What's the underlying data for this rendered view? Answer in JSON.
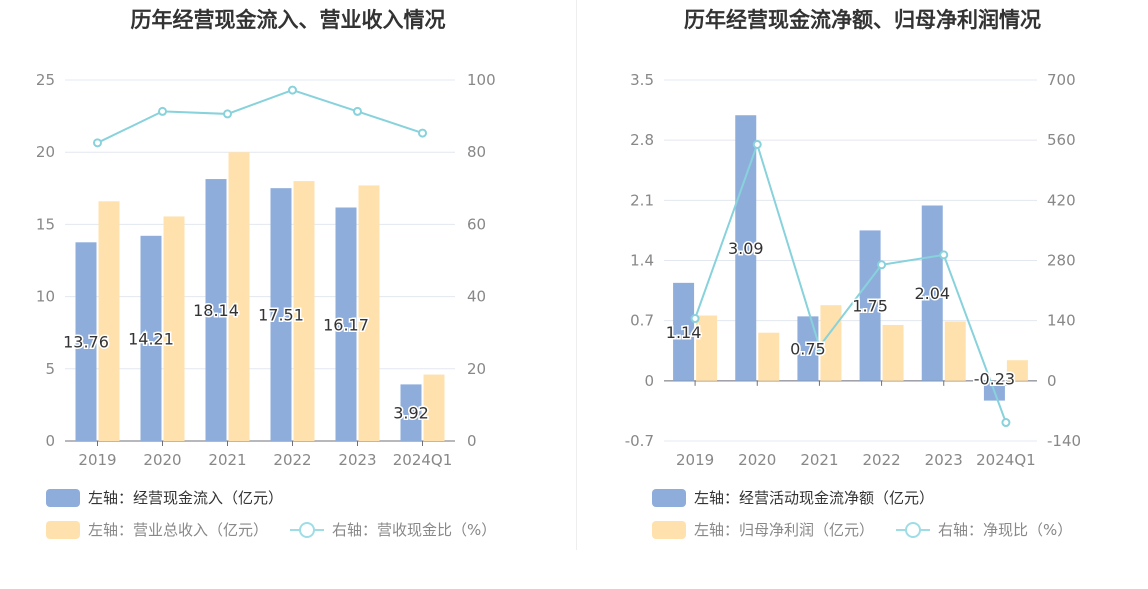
{
  "charts": [
    {
      "title": "历年经营现金流入、营业收入情况",
      "legend": [
        {
          "label": "左轴：经营现金流入（亿元）",
          "color": "#8eaddb",
          "kind": "bar",
          "text_color": "#333333"
        },
        {
          "label": "左轴：营业总收入（亿元）",
          "color": "#ffe1ad",
          "kind": "bar",
          "text_color": "#888888"
        },
        {
          "label": "右轴：营收现金比（%）",
          "color": "#9fdde6",
          "kind": "line",
          "text_color": "#888888"
        }
      ]
    },
    {
      "title": "历年经营现金流净额、归母净利润情况",
      "legend": [
        {
          "label": "左轴：经营活动现金流净额（亿元）",
          "color": "#8eaddb",
          "kind": "bar",
          "text_color": "#333333"
        },
        {
          "label": "左轴：归母净利润（亿元）",
          "color": "#ffe1ad",
          "kind": "bar",
          "text_color": "#888888"
        },
        {
          "label": "右轴：净现比（%）",
          "color": "#9fdde6",
          "kind": "line",
          "text_color": "#888888"
        }
      ]
    }
  ],
  "chart_data": [
    {
      "type": "bar",
      "title": "历年经营现金流入、营业收入情况",
      "categories": [
        "2019",
        "2020",
        "2021",
        "2022",
        "2023",
        "2024Q1"
      ],
      "left_axis": {
        "ticks": [
          "0",
          "5",
          "10",
          "15",
          "20",
          "25"
        ],
        "ylim": [
          0,
          25
        ]
      },
      "right_axis": {
        "ticks": [
          "0",
          "20",
          "40",
          "60",
          "80",
          "100"
        ],
        "ylim": [
          0,
          100
        ]
      },
      "series": [
        {
          "name": "经营现金流入（亿元）",
          "axis": "left",
          "kind": "bar",
          "color": "#8eaddb",
          "values": [
            13.76,
            14.21,
            18.14,
            17.51,
            16.17,
            3.92
          ],
          "labels": [
            "13.76",
            "14.21",
            "18.14",
            "17.51",
            "16.17",
            "3.92"
          ]
        },
        {
          "name": "营业总收入（亿元）",
          "axis": "left",
          "kind": "bar",
          "color": "#ffe1ad",
          "values": [
            16.6,
            15.55,
            20.0,
            18.0,
            17.7,
            4.6
          ]
        },
        {
          "name": "营收现金比（%）",
          "axis": "right",
          "kind": "line",
          "color": "#88d2dc",
          "values": [
            82.6,
            91.3,
            90.6,
            97.2,
            91.3,
            85.3
          ]
        }
      ],
      "grid": true
    },
    {
      "type": "bar",
      "title": "历年经营现金流净额、归母净利润情况",
      "categories": [
        "2019",
        "2020",
        "2021",
        "2022",
        "2023",
        "2024Q1"
      ],
      "left_axis": {
        "ticks": [
          "-0.7",
          "0",
          "0.7",
          "1.4",
          "2.1",
          "2.8",
          "3.5"
        ],
        "ylim": [
          -0.7,
          3.5
        ]
      },
      "right_axis": {
        "ticks": [
          "-140",
          "0",
          "140",
          "280",
          "420",
          "560",
          "700"
        ],
        "ylim": [
          -140,
          700
        ]
      },
      "series": [
        {
          "name": "经营活动现金流净额（亿元）",
          "axis": "left",
          "kind": "bar",
          "color": "#8eaddb",
          "values": [
            1.14,
            3.09,
            0.75,
            1.75,
            2.04,
            -0.23
          ],
          "labels": [
            "1.14",
            "3.09",
            "0.75",
            "1.75",
            "2.04",
            "-0.23"
          ]
        },
        {
          "name": "归母净利润（亿元）",
          "axis": "left",
          "kind": "bar",
          "color": "#ffe1ad",
          "values": [
            0.76,
            0.56,
            0.88,
            0.65,
            0.69,
            0.24
          ]
        },
        {
          "name": "净现比（%）",
          "axis": "right",
          "kind": "line",
          "color": "#88d2dc",
          "values": [
            145,
            550,
            80,
            270,
            293,
            -97
          ]
        }
      ],
      "grid": true
    }
  ]
}
